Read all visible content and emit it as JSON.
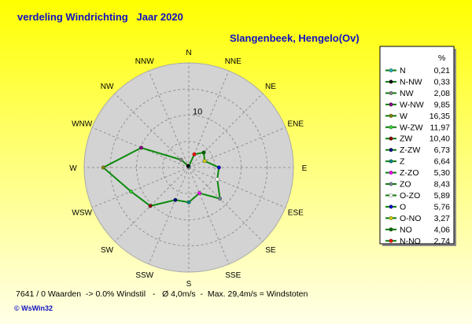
{
  "title": "verdeling Windrichting   Jaar 2020",
  "subtitle": "Slangenbeek, Hengelo(Ov)",
  "footer": "7641 / 0 Waarden  -> 0.0% Windstil   -   Ø 4,0m/s  -  Max. 29,4m/s = Windstoten",
  "credit": "© WsWin32",
  "legend_header": "%",
  "colors": {
    "line": "#0a8a0a",
    "disk": "#d3d3d3",
    "frame": "#a9a9a9",
    "grid": "#808080"
  },
  "chart_data": {
    "type": "radar",
    "title": "verdeling Windrichting   Jaar 2020",
    "subtitle": "Slangenbeek, Hengelo(Ov)",
    "ring_labels": [
      "10"
    ],
    "rmax": 20,
    "rings": [
      5,
      10,
      15
    ],
    "axis_labels": [
      "N",
      "NNE",
      "NE",
      "ENE",
      "E",
      "ESE",
      "SE",
      "SSE",
      "S",
      "SSW",
      "SW",
      "WSW",
      "W",
      "WNW",
      "NW",
      "NNW"
    ],
    "series": [
      {
        "label": "N",
        "value": 0.21,
        "value_text": "0,21",
        "color": "#20b2b2"
      },
      {
        "label": "N-NW",
        "value": 0.33,
        "value_text": "0,33",
        "color": "#000000"
      },
      {
        "label": "NW",
        "value": 2.08,
        "value_text": "2,08",
        "color": "#808080"
      },
      {
        "label": "W-NW",
        "value": 9.85,
        "value_text": "9,85",
        "color": "#800080"
      },
      {
        "label": "W",
        "value": 16.35,
        "value_text": "16,35",
        "color": "#808000"
      },
      {
        "label": "W-ZW",
        "value": 11.97,
        "value_text": "11,97",
        "color": "#32cd32"
      },
      {
        "label": "ZW",
        "value": 10.4,
        "value_text": "10,40",
        "color": "#8b0000"
      },
      {
        "label": "Z-ZW",
        "value": 6.73,
        "value_text": "6,73",
        "color": "#000080"
      },
      {
        "label": "Z",
        "value": 6.64,
        "value_text": "6,64",
        "color": "#008080"
      },
      {
        "label": "Z-ZO",
        "value": 5.3,
        "value_text": "5,30",
        "color": "#ff00ff"
      },
      {
        "label": "ZO",
        "value": 8.43,
        "value_text": "8,43",
        "color": "#708090"
      },
      {
        "label": "O-ZO",
        "value": 5.89,
        "value_text": "5,89",
        "color": "#ffffff"
      },
      {
        "label": "O",
        "value": 5.76,
        "value_text": "5,76",
        "color": "#0000cd"
      },
      {
        "label": "O-NO",
        "value": 3.27,
        "value_text": "3,27",
        "color": "#cccc00"
      },
      {
        "label": "NO",
        "value": 4.06,
        "value_text": "4,06",
        "color": "#006400"
      },
      {
        "label": "N-NO",
        "value": 2.74,
        "value_text": "2,74",
        "color": "#ff0000"
      }
    ],
    "point_order": [
      "N",
      "N-NO",
      "NO",
      "O-NO",
      "O",
      "O-ZO",
      "ZO",
      "Z-ZO",
      "Z",
      "Z-ZW",
      "ZW",
      "W-ZW",
      "W",
      "W-NW",
      "NW",
      "N-NW"
    ]
  }
}
